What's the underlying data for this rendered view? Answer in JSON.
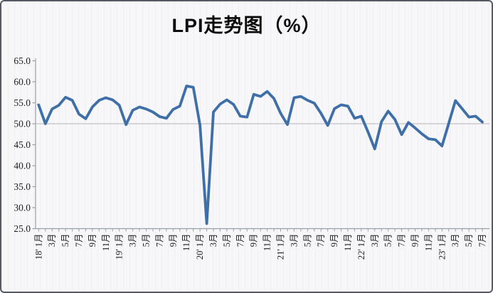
{
  "page": {
    "title": "LPI走势图（%）"
  },
  "chart_data": {
    "type": "line",
    "title": "LPI走势图（%）",
    "legend": "none",
    "grid": "horizontal reference line at 50.0 only",
    "ylim": [
      25.0,
      65.0
    ],
    "y_tick_step": 5.0,
    "y_tick_labels": [
      "65.0",
      "60.0",
      "55.0",
      "50.0",
      "45.0",
      "40.0",
      "35.0",
      "30.0",
      "25.0"
    ],
    "reference_line_y": 50.0,
    "line_color": "#3f6fa8",
    "axis_color": "#9aa0a8",
    "x": [
      "2018-01",
      "2018-02",
      "2018-03",
      "2018-04",
      "2018-05",
      "2018-06",
      "2018-07",
      "2018-08",
      "2018-09",
      "2018-10",
      "2018-11",
      "2018-12",
      "2019-01",
      "2019-02",
      "2019-03",
      "2019-04",
      "2019-05",
      "2019-06",
      "2019-07",
      "2019-08",
      "2019-09",
      "2019-10",
      "2019-11",
      "2019-12",
      "2020-01",
      "2020-02",
      "2020-03",
      "2020-04",
      "2020-05",
      "2020-06",
      "2020-07",
      "2020-08",
      "2020-09",
      "2020-10",
      "2020-11",
      "2020-12",
      "2021-01",
      "2021-02",
      "2021-03",
      "2021-04",
      "2021-05",
      "2021-06",
      "2021-07",
      "2021-08",
      "2021-09",
      "2021-10",
      "2021-11",
      "2021-12",
      "2022-01",
      "2022-02",
      "2022-03",
      "2022-04",
      "2022-05",
      "2022-06",
      "2022-07",
      "2022-08",
      "2022-09",
      "2022-10",
      "2022-11",
      "2022-12",
      "2023-01",
      "2023-02",
      "2023-03",
      "2023-04",
      "2023-05",
      "2023-06",
      "2023-07"
    ],
    "x_tick_labels": [
      "18' 1月",
      "3月",
      "5月",
      "7月",
      "9月",
      "11月",
      "19' 1月",
      "3月",
      "5月",
      "7月",
      "9月",
      "11月",
      "20' 1月",
      "3月",
      "5月",
      "7月",
      "9月",
      "11月",
      "21' 1月",
      "3月",
      "5月",
      "7月",
      "9月",
      "11月",
      "22' 1月",
      "3月",
      "5月",
      "7月",
      "9月",
      "11月",
      "23' 1月",
      "3月",
      "5月",
      "7月"
    ],
    "series": [
      {
        "name": "LPI",
        "values": [
          54.5,
          50.0,
          53.5,
          54.4,
          56.3,
          55.6,
          52.3,
          51.2,
          54.0,
          55.6,
          56.2,
          55.7,
          54.4,
          49.8,
          53.2,
          54.0,
          53.5,
          52.8,
          51.7,
          51.3,
          53.4,
          54.2,
          59.0,
          58.7,
          49.7,
          26.2,
          52.8,
          54.7,
          55.7,
          54.6,
          51.8,
          51.6,
          57.0,
          56.5,
          57.7,
          56.0,
          52.5,
          49.8,
          56.2,
          56.5,
          55.6,
          54.9,
          52.5,
          49.6,
          53.6,
          54.5,
          54.2,
          51.3,
          51.8,
          48.0,
          44.0,
          50.5,
          53.0,
          51.0,
          47.4,
          50.3,
          49.0,
          47.6,
          46.4,
          46.2,
          44.7,
          50.1,
          55.5,
          53.6,
          51.6,
          51.8,
          50.4
        ]
      }
    ]
  }
}
